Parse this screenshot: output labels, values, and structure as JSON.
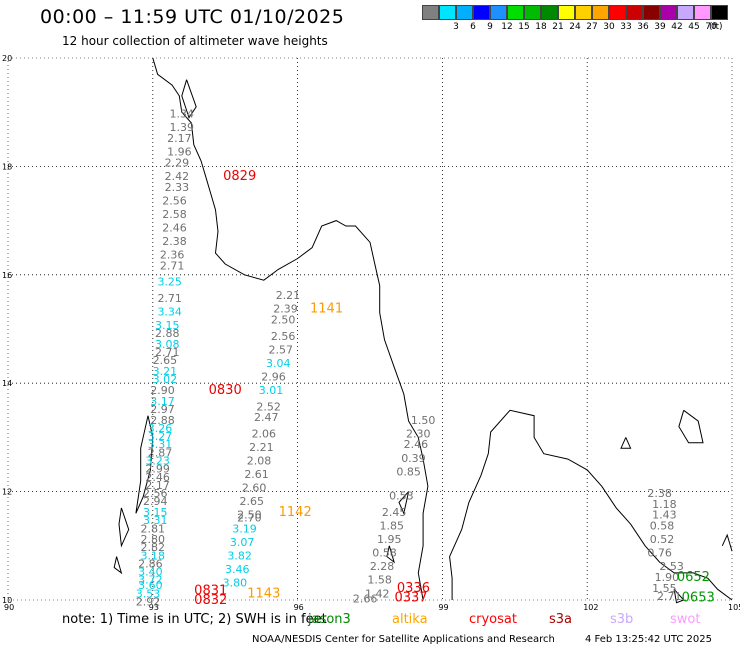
{
  "title": "00:00 – 11:59 UTC 01/10/2025",
  "subtitle": "12 hour collection of altimeter wave heights",
  "color_scale": {
    "unit": "(ft)",
    "entries": [
      {
        "label": "",
        "color": "#808080"
      },
      {
        "label": "3",
        "color": "#00e5ff"
      },
      {
        "label": "6",
        "color": "#00b0ff"
      },
      {
        "label": "9",
        "color": "#0000ff"
      },
      {
        "label": "12",
        "color": "#1e90ff"
      },
      {
        "label": "15",
        "color": "#00dd00"
      },
      {
        "label": "18",
        "color": "#00bb00"
      },
      {
        "label": "21",
        "color": "#008800"
      },
      {
        "label": "24",
        "color": "#ffff00"
      },
      {
        "label": "27",
        "color": "#ffd000"
      },
      {
        "label": "30",
        "color": "#ffa500"
      },
      {
        "label": "33",
        "color": "#ff0000"
      },
      {
        "label": "36",
        "color": "#cc0000"
      },
      {
        "label": "39",
        "color": "#880000"
      },
      {
        "label": "42",
        "color": "#aa00aa"
      },
      {
        "label": "45",
        "color": "#c8a8ff"
      },
      {
        "label": "70",
        "color": "#ff99ff"
      },
      {
        "label": "",
        "color": "#000000"
      }
    ]
  },
  "axes": {
    "lat_labels": [
      "20",
      "18",
      "16",
      "14",
      "12",
      "10"
    ],
    "lon_labels": [
      "90",
      "93",
      "96",
      "99",
      "102",
      "105"
    ]
  },
  "wave_heights": [
    {
      "t": "1.34",
      "lat": 18.9,
      "lon": 93.6,
      "c": "gray"
    },
    {
      "t": "1.39",
      "lat": 18.65,
      "lon": 93.6,
      "c": "gray"
    },
    {
      "t": "2.17",
      "lat": 18.45,
      "lon": 93.55,
      "c": "gray"
    },
    {
      "t": "1.96",
      "lat": 18.2,
      "lon": 93.55,
      "c": "gray"
    },
    {
      "t": "2.29",
      "lat": 18.0,
      "lon": 93.5,
      "c": "gray"
    },
    {
      "t": "2.42",
      "lat": 17.75,
      "lon": 93.5,
      "c": "gray"
    },
    {
      "t": "2.33",
      "lat": 17.55,
      "lon": 93.5,
      "c": "gray"
    },
    {
      "t": "2.56",
      "lat": 17.3,
      "lon": 93.45,
      "c": "gray"
    },
    {
      "t": "2.58",
      "lat": 17.05,
      "lon": 93.45,
      "c": "gray"
    },
    {
      "t": "2.46",
      "lat": 16.8,
      "lon": 93.45,
      "c": "gray"
    },
    {
      "t": "2.38",
      "lat": 16.55,
      "lon": 93.45,
      "c": "gray"
    },
    {
      "t": "2.36",
      "lat": 16.3,
      "lon": 93.4,
      "c": "gray"
    },
    {
      "t": "2.71",
      "lat": 16.1,
      "lon": 93.4,
      "c": "gray"
    },
    {
      "t": "3.25",
      "lat": 15.8,
      "lon": 93.35,
      "c": "cyan"
    },
    {
      "t": "2.71",
      "lat": 15.5,
      "lon": 93.35,
      "c": "gray"
    },
    {
      "t": "3.34",
      "lat": 15.25,
      "lon": 93.35,
      "c": "cyan"
    },
    {
      "t": "3.15",
      "lat": 15.0,
      "lon": 93.3,
      "c": "cyan"
    },
    {
      "t": "2.88",
      "lat": 14.85,
      "lon": 93.3,
      "c": "gray"
    },
    {
      "t": "3.08",
      "lat": 14.65,
      "lon": 93.3,
      "c": "cyan"
    },
    {
      "t": "2.71",
      "lat": 14.5,
      "lon": 93.3,
      "c": "gray"
    },
    {
      "t": "2.65",
      "lat": 14.35,
      "lon": 93.25,
      "c": "gray"
    },
    {
      "t": "3.21",
      "lat": 14.15,
      "lon": 93.25,
      "c": "cyan"
    },
    {
      "t": "3.02",
      "lat": 14.0,
      "lon": 93.25,
      "c": "cyan"
    },
    {
      "t": "2.90",
      "lat": 13.8,
      "lon": 93.2,
      "c": "gray"
    },
    {
      "t": "3.17",
      "lat": 13.6,
      "lon": 93.2,
      "c": "cyan"
    },
    {
      "t": "2.97",
      "lat": 13.45,
      "lon": 93.2,
      "c": "gray"
    },
    {
      "t": "2.88",
      "lat": 13.25,
      "lon": 93.2,
      "c": "gray"
    },
    {
      "t": "3.26",
      "lat": 13.1,
      "lon": 93.15,
      "c": "cyan"
    },
    {
      "t": "3.27",
      "lat": 12.95,
      "lon": 93.15,
      "c": "cyan"
    },
    {
      "t": "3.31",
      "lat": 12.8,
      "lon": 93.15,
      "c": "cyan"
    },
    {
      "t": "2.87",
      "lat": 12.65,
      "lon": 93.15,
      "c": "gray"
    },
    {
      "t": "3.23",
      "lat": 12.5,
      "lon": 93.1,
      "c": "cyan"
    },
    {
      "t": "2.99",
      "lat": 12.35,
      "lon": 93.1,
      "c": "gray"
    },
    {
      "t": "2.46",
      "lat": 12.2,
      "lon": 93.1,
      "c": "gray"
    },
    {
      "t": "2.17",
      "lat": 12.05,
      "lon": 93.1,
      "c": "gray"
    },
    {
      "t": "2.56",
      "lat": 11.9,
      "lon": 93.05,
      "c": "gray"
    },
    {
      "t": "2.94",
      "lat": 11.75,
      "lon": 93.05,
      "c": "gray"
    },
    {
      "t": "3.15",
      "lat": 11.55,
      "lon": 93.05,
      "c": "cyan"
    },
    {
      "t": "3.31",
      "lat": 11.4,
      "lon": 93.05,
      "c": "cyan"
    },
    {
      "t": "2.81",
      "lat": 11.25,
      "lon": 93.0,
      "c": "gray"
    },
    {
      "t": "2.80",
      "lat": 11.05,
      "lon": 93.0,
      "c": "gray"
    },
    {
      "t": "2.82",
      "lat": 10.9,
      "lon": 93.0,
      "c": "gray"
    },
    {
      "t": "3.18",
      "lat": 10.75,
      "lon": 93.0,
      "c": "cyan"
    },
    {
      "t": "2.86",
      "lat": 10.6,
      "lon": 92.95,
      "c": "gray"
    },
    {
      "t": "3.40",
      "lat": 10.45,
      "lon": 92.95,
      "c": "cyan"
    },
    {
      "t": "3.72",
      "lat": 10.3,
      "lon": 92.95,
      "c": "cyan"
    },
    {
      "t": "3.60",
      "lat": 10.2,
      "lon": 92.95,
      "c": "cyan"
    },
    {
      "t": "3.53",
      "lat": 10.05,
      "lon": 92.9,
      "c": "cyan"
    },
    {
      "t": "2.92",
      "lat": 9.9,
      "lon": 92.9,
      "c": "gray"
    },
    {
      "t": "2.21",
      "lat": 15.55,
      "lon": 95.8,
      "c": "gray"
    },
    {
      "t": "2.39",
      "lat": 15.3,
      "lon": 95.75,
      "c": "gray"
    },
    {
      "t": "2.50",
      "lat": 15.1,
      "lon": 95.7,
      "c": "gray"
    },
    {
      "t": "2.56",
      "lat": 14.8,
      "lon": 95.7,
      "c": "gray"
    },
    {
      "t": "2.57",
      "lat": 14.55,
      "lon": 95.65,
      "c": "gray"
    },
    {
      "t": "3.04",
      "lat": 14.3,
      "lon": 95.6,
      "c": "cyan"
    },
    {
      "t": "2.96",
      "lat": 14.05,
      "lon": 95.5,
      "c": "gray"
    },
    {
      "t": "3.01",
      "lat": 13.8,
      "lon": 95.45,
      "c": "cyan"
    },
    {
      "t": "2.52",
      "lat": 13.5,
      "lon": 95.4,
      "c": "gray"
    },
    {
      "t": "2.47",
      "lat": 13.3,
      "lon": 95.35,
      "c": "gray"
    },
    {
      "t": "2.06",
      "lat": 13.0,
      "lon": 95.3,
      "c": "gray"
    },
    {
      "t": "2.21",
      "lat": 12.75,
      "lon": 95.25,
      "c": "gray"
    },
    {
      "t": "2.08",
      "lat": 12.5,
      "lon": 95.2,
      "c": "gray"
    },
    {
      "t": "2.61",
      "lat": 12.25,
      "lon": 95.15,
      "c": "gray"
    },
    {
      "t": "2.60",
      "lat": 12.0,
      "lon": 95.1,
      "c": "gray"
    },
    {
      "t": "2.65",
      "lat": 11.75,
      "lon": 95.05,
      "c": "gray"
    },
    {
      "t": "2.50",
      "lat": 11.5,
      "lon": 95.0,
      "c": "gray"
    },
    {
      "t": "2.70",
      "lat": 11.45,
      "lon": 95.0,
      "c": "gray"
    },
    {
      "t": "3.19",
      "lat": 11.25,
      "lon": 94.9,
      "c": "cyan"
    },
    {
      "t": "3.07",
      "lat": 11.0,
      "lon": 94.85,
      "c": "cyan"
    },
    {
      "t": "3.82",
      "lat": 10.75,
      "lon": 94.8,
      "c": "cyan"
    },
    {
      "t": "3.46",
      "lat": 10.5,
      "lon": 94.75,
      "c": "cyan"
    },
    {
      "t": "3.80",
      "lat": 10.25,
      "lon": 94.7,
      "c": "cyan"
    },
    {
      "t": "1.50",
      "lat": 13.25,
      "lon": 98.6,
      "c": "gray"
    },
    {
      "t": "2.30",
      "lat": 13.0,
      "lon": 98.5,
      "c": "gray"
    },
    {
      "t": "2.46",
      "lat": 12.8,
      "lon": 98.45,
      "c": "gray"
    },
    {
      "t": "0.39",
      "lat": 12.55,
      "lon": 98.4,
      "c": "gray"
    },
    {
      "t": "0.85",
      "lat": 12.3,
      "lon": 98.3,
      "c": "gray"
    },
    {
      "t": "0.53",
      "lat": 11.85,
      "lon": 98.15,
      "c": "gray"
    },
    {
      "t": "2.45",
      "lat": 11.55,
      "lon": 98.0,
      "c": "gray"
    },
    {
      "t": "1.85",
      "lat": 11.3,
      "lon": 97.95,
      "c": "gray"
    },
    {
      "t": "1.95",
      "lat": 11.05,
      "lon": 97.9,
      "c": "gray"
    },
    {
      "t": "0.58",
      "lat": 10.8,
      "lon": 97.8,
      "c": "gray"
    },
    {
      "t": "2.28",
      "lat": 10.55,
      "lon": 97.75,
      "c": "gray"
    },
    {
      "t": "1.58",
      "lat": 10.3,
      "lon": 97.7,
      "c": "gray"
    },
    {
      "t": "1.42",
      "lat": 10.05,
      "lon": 97.65,
      "c": "gray"
    },
    {
      "t": "2.66",
      "lat": 9.95,
      "lon": 97.4,
      "c": "gray"
    },
    {
      "t": "2.38",
      "lat": 11.9,
      "lon": 103.5,
      "c": "gray"
    },
    {
      "t": "1.18",
      "lat": 11.7,
      "lon": 103.6,
      "c": "gray"
    },
    {
      "t": "1.43",
      "lat": 11.5,
      "lon": 103.6,
      "c": "gray"
    },
    {
      "t": "0.58",
      "lat": 11.3,
      "lon": 103.55,
      "c": "gray"
    },
    {
      "t": "0.52",
      "lat": 11.05,
      "lon": 103.55,
      "c": "gray"
    },
    {
      "t": "0.76",
      "lat": 10.8,
      "lon": 103.5,
      "c": "gray"
    },
    {
      "t": "2.53",
      "lat": 10.55,
      "lon": 103.75,
      "c": "gray"
    },
    {
      "t": "1.90",
      "lat": 10.35,
      "lon": 103.65,
      "c": "gray"
    },
    {
      "t": "1.55",
      "lat": 10.15,
      "lon": 103.6,
      "c": "gray"
    },
    {
      "t": "2.71",
      "lat": 10.0,
      "lon": 103.7,
      "c": "gray"
    }
  ],
  "pass_times": [
    {
      "t": "0829",
      "lat": 17.75,
      "lon": 94.8,
      "c": "red"
    },
    {
      "t": "1141",
      "lat": 15.3,
      "lon": 96.6,
      "c": "orange"
    },
    {
      "t": "0830",
      "lat": 13.8,
      "lon": 94.5,
      "c": "red"
    },
    {
      "t": "1142",
      "lat": 11.55,
      "lon": 95.95,
      "c": "orange"
    },
    {
      "t": "0831",
      "lat": 10.1,
      "lon": 94.2,
      "c": "red"
    },
    {
      "t": "0832",
      "lat": 9.93,
      "lon": 94.2,
      "c": "red"
    },
    {
      "t": "1143",
      "lat": 10.05,
      "lon": 95.3,
      "c": "orange"
    },
    {
      "t": "0336",
      "lat": 10.15,
      "lon": 98.4,
      "c": "red"
    },
    {
      "t": "0337",
      "lat": 9.97,
      "lon": 98.35,
      "c": "red"
    },
    {
      "t": "0652",
      "lat": 10.35,
      "lon": 104.2,
      "c": "green"
    },
    {
      "t": "0653",
      "lat": 9.97,
      "lon": 104.3,
      "c": "green"
    }
  ],
  "note": {
    "text": "note:  1) Time is in UTC;  2) SWH is in feet",
    "sats": [
      {
        "name": "jason3",
        "color": "#008800"
      },
      {
        "name": "altika",
        "color": "#ffa500"
      },
      {
        "name": "cryosat",
        "color": "#ff0000"
      },
      {
        "name": "s3a",
        "color": "#aa0000"
      },
      {
        "name": "s3b",
        "color": "#c8a8ff"
      },
      {
        "name": "swot",
        "color": "#ff99ff"
      }
    ]
  },
  "footer": {
    "center": "NOAA/NESDIS Center for Satellite Applications and Research",
    "timestamp": "4 Feb 13:25:42 UTC 2025"
  }
}
